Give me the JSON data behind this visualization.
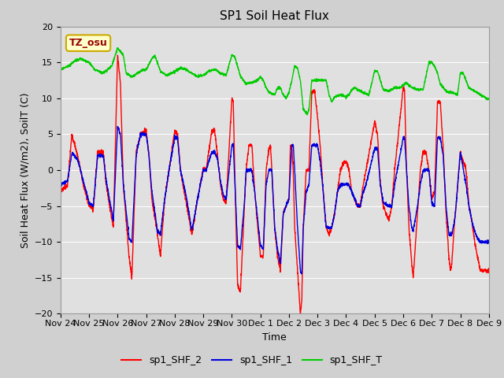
{
  "title": "SP1 Soil Heat Flux",
  "xlabel": "Time",
  "ylabel": "Soil Heat Flux (W/m2), SoilT (C)",
  "ylim": [
    -20,
    20
  ],
  "yticks": [
    -20,
    -15,
    -10,
    -5,
    0,
    5,
    10,
    15,
    20
  ],
  "xtick_labels": [
    "Nov 24",
    "Nov 25",
    "Nov 26",
    "Nov 27",
    "Nov 28",
    "Nov 29",
    "Nov 30",
    "Dec 1",
    "Dec 2",
    "Dec 3",
    "Dec 4",
    "Dec 5",
    "Dec 6",
    "Dec 7",
    "Dec 8",
    "Dec 9"
  ],
  "n_days": 15,
  "fig_width": 6.4,
  "fig_height": 4.8,
  "dpi": 100,
  "bg_color": "#d0d0d0",
  "plot_bg_color": "#e0e0e0",
  "grid_color": "#ffffff",
  "line_colors": {
    "sp1_SHF_2": "#ff0000",
    "sp1_SHF_1": "#0000dd",
    "sp1_SHF_T": "#00cc00"
  },
  "line_width": 1.0,
  "annotation_text": "TZ_osu",
  "annotation_bg": "#ffffcc",
  "annotation_border": "#ccaa00",
  "annotation_text_color": "#990000",
  "legend_entries": [
    "sp1_SHF_2",
    "sp1_SHF_1",
    "sp1_SHF_T"
  ],
  "title_fontsize": 11,
  "label_fontsize": 9,
  "tick_fontsize": 8,
  "legend_fontsize": 9
}
